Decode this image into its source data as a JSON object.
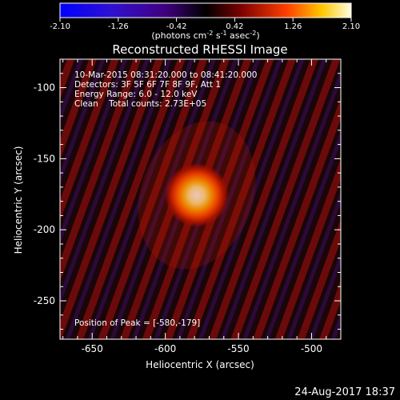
{
  "colorbar": {
    "tick_labels": [
      "-2.10",
      "-1.26",
      "-0.42",
      "0.42",
      "1.26",
      "2.10"
    ],
    "unit": {
      "prefix": "(photons cm",
      "exp1": "-2",
      "mid1": " s",
      "exp2": "-1",
      "mid2": " asec",
      "exp3": "-2",
      "suffix": ")"
    }
  },
  "image": {
    "title": "Reconstructed RHESSI Image",
    "x_label": "Heliocentric X (arcsec)",
    "y_label": "Heliocentric Y (arcsec)",
    "x_ticks": [
      "-650",
      "-600",
      "-550",
      "-500"
    ],
    "y_ticks": [
      "-100",
      "-150",
      "-200",
      "-250"
    ],
    "x_range": [
      -672,
      -480
    ],
    "y_range": [
      -80,
      -277
    ],
    "annotations": [
      "10-Mar-2015 08:31:20.000 to 08:41:20.000",
      "Detectors: 3F 5F 6F 7F 8F 9F, Att 1",
      "Energy Range: 6.0 - 12.0 keV",
      "Clean    Total counts: 2.73E+05"
    ],
    "peak_label": "Position of Peak = [-580,-179]",
    "peak": [
      -580,
      -179
    ]
  },
  "footer": {
    "timestamp": "24-Aug-2017 18:37"
  },
  "colors": {
    "background": "#000000",
    "text": "#ffffff"
  }
}
